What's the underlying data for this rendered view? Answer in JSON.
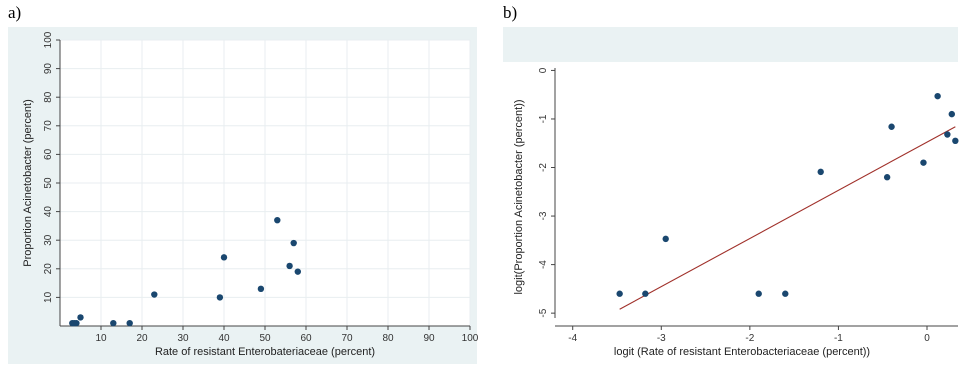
{
  "panels": [
    {
      "label": "a)"
    },
    {
      "label": "b)"
    }
  ],
  "colors": {
    "outer_bg": "#eaf2f3",
    "plot_bg": "#ffffff",
    "grid": "#e8eef0",
    "point": "#1a476f",
    "fit_line": "#a0302a",
    "axis": "#444444"
  },
  "chart_data": [
    {
      "type": "scatter",
      "title": "",
      "xlabel": "Rate of resistant Enterobateriaceae (percent)",
      "ylabel": "Proportion Acinetobacter (percent)",
      "xlim": [
        0,
        100
      ],
      "ylim": [
        0,
        100
      ],
      "xticks": [
        10,
        20,
        30,
        40,
        50,
        60,
        70,
        80,
        90,
        100
      ],
      "yticks": [
        10,
        20,
        30,
        40,
        50,
        60,
        70,
        80,
        90,
        100
      ],
      "grid": true,
      "points": [
        {
          "x": 3,
          "y": 1
        },
        {
          "x": 3.5,
          "y": 1
        },
        {
          "x": 4,
          "y": 1
        },
        {
          "x": 5,
          "y": 3
        },
        {
          "x": 13,
          "y": 1
        },
        {
          "x": 17,
          "y": 1
        },
        {
          "x": 23,
          "y": 11
        },
        {
          "x": 39,
          "y": 10
        },
        {
          "x": 40,
          "y": 24
        },
        {
          "x": 49,
          "y": 13
        },
        {
          "x": 53,
          "y": 37
        },
        {
          "x": 56,
          "y": 21
        },
        {
          "x": 57,
          "y": 29
        },
        {
          "x": 58,
          "y": 19
        }
      ]
    },
    {
      "type": "scatter",
      "title": "",
      "xlabel": "logit (Rate of resistant Enterobacteriaceae  (percent))",
      "ylabel": "logit(Proportion Acinetobacter (percent))",
      "xlim": [
        -4.2,
        0.35
      ],
      "ylim": [
        -5.1,
        0.05
      ],
      "xticks": [
        -4,
        -3,
        -2,
        -1,
        0
      ],
      "yticks": [
        0,
        -1,
        -2,
        -3,
        -4,
        -5
      ],
      "grid": false,
      "points": [
        {
          "x": -3.47,
          "y": -4.6
        },
        {
          "x": -3.18,
          "y": -4.6
        },
        {
          "x": -2.95,
          "y": -3.47
        },
        {
          "x": -1.9,
          "y": -4.6
        },
        {
          "x": -1.6,
          "y": -4.6
        },
        {
          "x": -1.2,
          "y": -2.09
        },
        {
          "x": -0.45,
          "y": -2.2
        },
        {
          "x": -0.4,
          "y": -1.16
        },
        {
          "x": -0.04,
          "y": -1.9
        },
        {
          "x": 0.12,
          "y": -0.53
        },
        {
          "x": 0.23,
          "y": -1.32
        },
        {
          "x": 0.28,
          "y": -0.9
        },
        {
          "x": 0.32,
          "y": -1.45
        }
      ],
      "fit_line": {
        "x": [
          -3.47,
          0.32
        ],
        "y": [
          -4.92,
          -1.16
        ]
      }
    }
  ]
}
